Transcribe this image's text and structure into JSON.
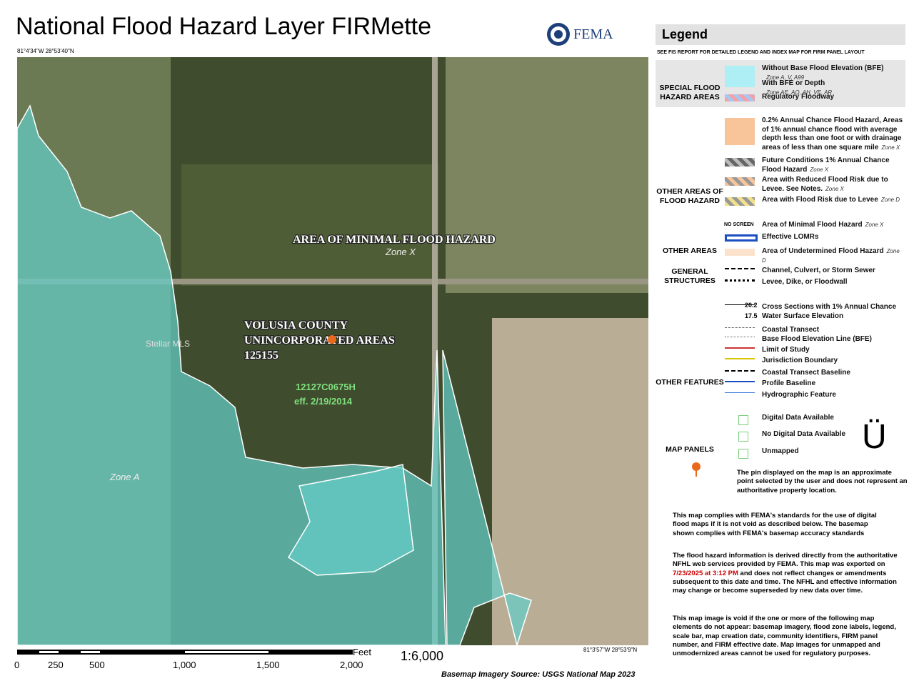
{
  "header": {
    "title": "National Flood Hazard Layer FIRMette",
    "agency": "FEMA"
  },
  "map": {
    "coord_top_left": "81°4'34\"W 28°53'40\"N",
    "coord_bottom_right": "81°3'57\"W 28°53'9\"N",
    "labels": [
      "AREA OF MINIMAL FLOOD HAZARD",
      "Zone X",
      "VOLUSIA COUNTY",
      "UNINCORPORATED AREAS",
      "125155",
      "Zone A"
    ],
    "panel_id": "12127C0675H",
    "effective": "eff. 2/19/2014",
    "watermark": "Stellar MLS"
  },
  "scale": {
    "unit": "Feet",
    "ticks": [
      "0",
      "250",
      "500",
      "1,000",
      "1,500",
      "2,000"
    ],
    "ratio": "1:6,000"
  },
  "source": "Basemap Imagery Source: USGS National Map 2023",
  "legend": {
    "title": "Legend",
    "subtitle": "SEE FIS REPORT FOR DETAILED LEGEND AND INDEX MAP FOR FIRM PANEL LAYOUT",
    "sections": [
      {
        "heading": "SPECIAL FLOOD HAZARD AREAS",
        "items": [
          {
            "label": "Without Base Flood Elevation (BFE)",
            "zone": "Zone A, V, A99"
          },
          {
            "label": "With BFE or Depth",
            "zone": "Zone AE, AO, AH, VE, AR"
          },
          {
            "label": "Regulatory Floodway"
          }
        ]
      },
      {
        "heading": "OTHER AREAS OF FLOOD HAZARD",
        "items": [
          {
            "label": "0.2% Annual Chance Flood Hazard, Areas of 1% annual chance flood with average depth less than one foot or with drainage areas of less than one square mile",
            "zone": "Zone X"
          },
          {
            "label": "Future Conditions 1% Annual Chance Flood Hazard",
            "zone": "Zone X"
          },
          {
            "label": "Area with Reduced Flood Risk due to Levee. See Notes.",
            "zone": "Zone X"
          },
          {
            "label": "Area with Flood Risk due to Levee",
            "zone": "Zone D"
          }
        ]
      },
      {
        "heading": "OTHER AREAS",
        "items": [
          {
            "symbol": "NO SCREEN",
            "label": "Area of Minimal Flood Hazard",
            "zone": "Zone X"
          },
          {
            "label": "Effective LOMRs"
          },
          {
            "label": "Area of Undetermined Flood Hazard",
            "zone": "Zone D"
          }
        ]
      },
      {
        "heading": "GENERAL STRUCTURES",
        "items": [
          {
            "label": "Channel, Culvert, or Storm Sewer"
          },
          {
            "label": "Levee, Dike, or Floodwall"
          }
        ]
      },
      {
        "heading": "OTHER FEATURES",
        "items": [
          {
            "label": "Cross Sections with 1% Annual Chance Water Surface Elevation"
          },
          {
            "label": "Coastal Transect"
          },
          {
            "label": "Base Flood Elevation Line (BFE)"
          },
          {
            "label": "Limit of Study"
          },
          {
            "label": "Jurisdiction Boundary"
          },
          {
            "label": "Coastal Transect Baseline"
          },
          {
            "label": "Profile Baseline"
          },
          {
            "label": "Hydrographic Feature"
          }
        ]
      },
      {
        "heading": "MAP PANELS",
        "items": [
          {
            "label": "Digital Data Available"
          },
          {
            "label": "No Digital Data Available"
          },
          {
            "label": "Unmapped"
          }
        ]
      }
    ],
    "cross_section_values": [
      "20.2",
      "17.5"
    ],
    "north_symbol": "Ü",
    "pin_note": "The pin displayed on the map is an approximate point selected by the user and does not represent an authoritative property location."
  },
  "notes": {
    "n1": "This map complies with FEMA's standards for the use of digital flood maps if it is not void as described below. The basemap shown complies with FEMA's basemap accuracy standards",
    "n2_pre": "The flood hazard information is derived directly from the authoritative NFHL web services provided by FEMA. This map was exported on",
    "n2_date": "7/23/2025 at 3:12 PM",
    "n2_post": "and does not reflect changes or amendments subsequent to this date and time. The NFHL and effective information may change or become superseded by new data over time.",
    "n3": "This map image is void if the one or more of the following map elements do not appear: basemap imagery, flood zone labels, legend, scale bar, map creation date, community identifiers, FIRM panel number, and FIRM effective date. Map images for unmapped and unmodernized areas cannot be used for regulatory purposes."
  }
}
